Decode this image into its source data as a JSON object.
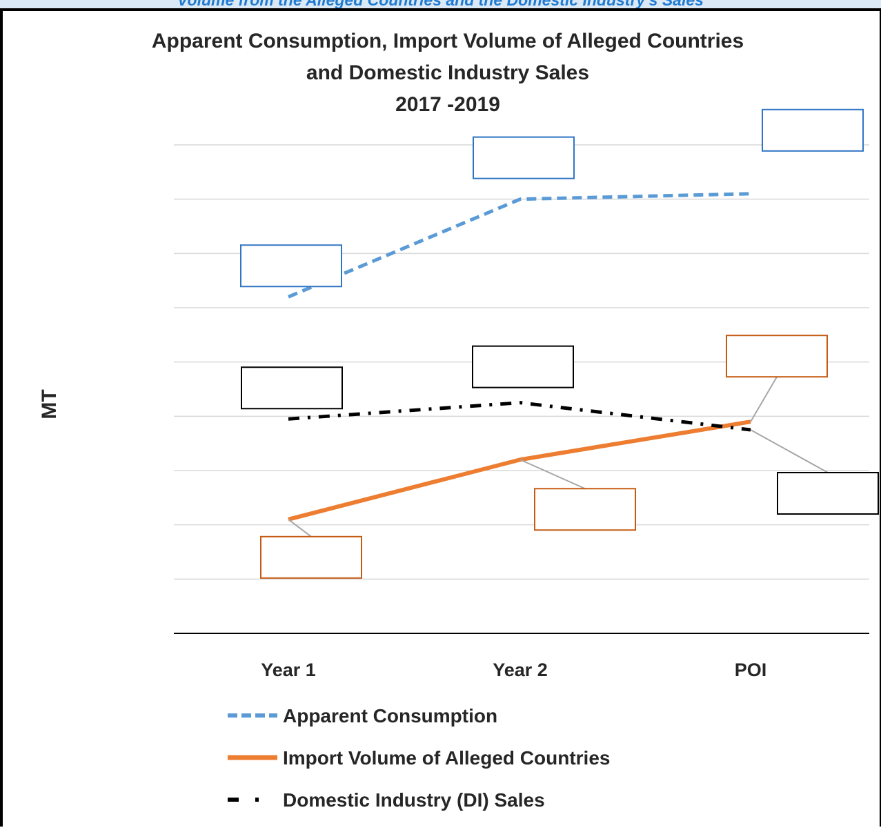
{
  "banner": {
    "text": "Volume from the Alleged Countries and the Domestic Industry's Sales"
  },
  "chart_data": {
    "type": "line",
    "title": [
      "Apparent Consumption, Import Volume of Alleged Countries",
      "and Domestic Industry Sales",
      "2017 -2019"
    ],
    "xlabel": "",
    "ylabel": "MT",
    "categories": [
      "Year 1",
      "Year 2",
      "POI"
    ],
    "ylim": [
      0,
      9
    ],
    "grid": true,
    "legend_position": "bottom",
    "series": [
      {
        "name": "Apparent Consumption",
        "values": [
          6.2,
          8.0,
          8.1
        ],
        "color": "#5b9bd5",
        "style": "dashed"
      },
      {
        "name": "Import Volume of Alleged Countries",
        "values": [
          2.1,
          3.2,
          3.9
        ],
        "color": "#ed7d31",
        "style": "solid"
      },
      {
        "name": "Domestic Industry (DI) Sales",
        "values": [
          3.95,
          4.25,
          3.75
        ],
        "color": "#000000",
        "style": "dash-dot"
      }
    ],
    "data_labels": "blank (redacted)"
  }
}
